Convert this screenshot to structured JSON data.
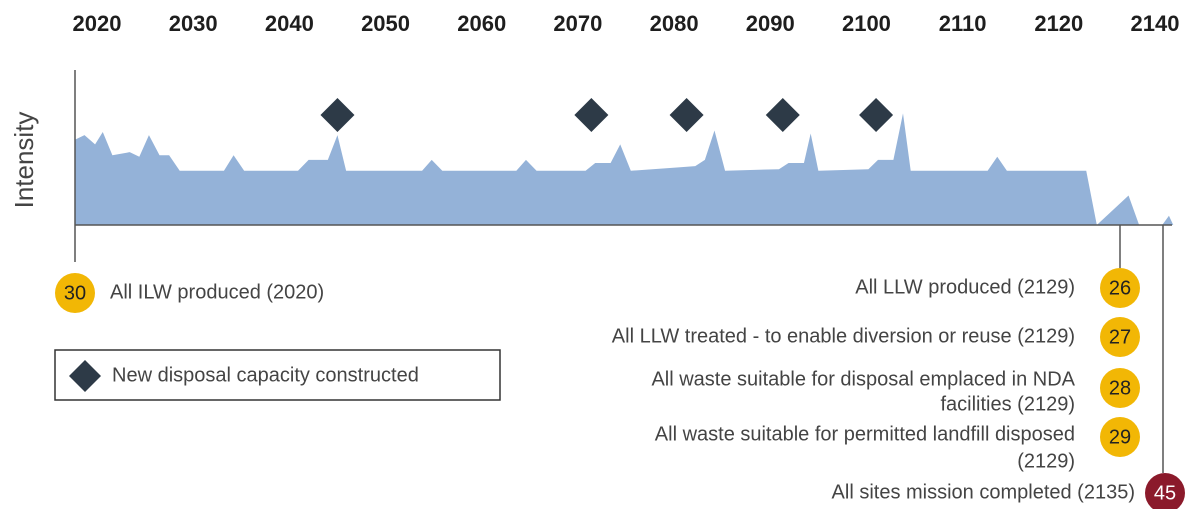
{
  "chart_data": {
    "type": "area",
    "y_label": "Intensity",
    "xticks": [
      2020,
      2030,
      2040,
      2050,
      2060,
      2070,
      2080,
      2090,
      2100,
      2110,
      2120,
      2140
    ],
    "ylim": [
      0,
      100
    ],
    "color": "#94b2d8",
    "x": [
      2017.7,
      2018.7,
      2019.8,
      2020.6,
      2021.6,
      2023.4,
      2024.4,
      2025.4,
      2026.5,
      2027.5,
      2028.6,
      2033.2,
      2034.2,
      2035.3,
      2040.9,
      2042,
      2044,
      2045,
      2045.9,
      2053.8,
      2054.8,
      2055.9,
      2063.6,
      2064.6,
      2065.7,
      2070.8,
      2071.8,
      2073.4,
      2074.4,
      2075.5,
      2080.1,
      2082.2,
      2083.2,
      2084.2,
      2085.3,
      2090.9,
      2091.9,
      2093.5,
      2094.2,
      2095,
      2100.2,
      2101.2,
      2102.8,
      2103.8,
      2104.6,
      2112.6,
      2113.6,
      2114.6,
      2125.7,
      2127.9,
      2134.5,
      2136.7,
      2141.5,
      2142.9,
      2143.8
    ],
    "values": [
      55,
      58,
      52,
      60,
      45,
      47,
      44,
      58,
      45,
      45,
      35,
      35,
      45,
      35,
      35,
      42,
      42,
      58,
      35,
      35,
      42,
      35,
      35,
      42,
      35,
      35,
      40,
      40,
      52,
      35,
      37,
      38,
      42,
      61,
      35,
      36,
      40,
      40,
      59,
      35,
      36,
      42,
      42,
      72,
      35,
      35,
      44,
      35,
      35,
      0,
      19,
      0,
      0,
      6,
      0
    ],
    "milestones": {
      "name": "New disposal capacity constructed",
      "color": "#2d3a47",
      "x": [
        2045,
        2071.4,
        2081.3,
        2091.3,
        2101
      ]
    },
    "annotations": [
      {
        "badge": 30,
        "color": "#f2b705",
        "lines": [
          "All ILW produced (2020)"
        ]
      },
      {
        "badge": 26,
        "color": "#f2b705",
        "lines": [
          "All LLW produced (2129)"
        ]
      },
      {
        "badge": 27,
        "color": "#f2b705",
        "lines": [
          "All LLW treated - to enable diversion or reuse (2129)"
        ]
      },
      {
        "badge": 28,
        "color": "#f2b705",
        "lines": [
          "All waste suitable for disposal emplaced in NDA",
          "facilities (2129)"
        ]
      },
      {
        "badge": 29,
        "color": "#f2b705",
        "lines": [
          "All waste suitable for permitted landfill disposed",
          "(2129)"
        ]
      },
      {
        "badge": 45,
        "color": "#8b1a2b",
        "lines": [
          "All sites mission completed (2135)"
        ]
      }
    ]
  }
}
